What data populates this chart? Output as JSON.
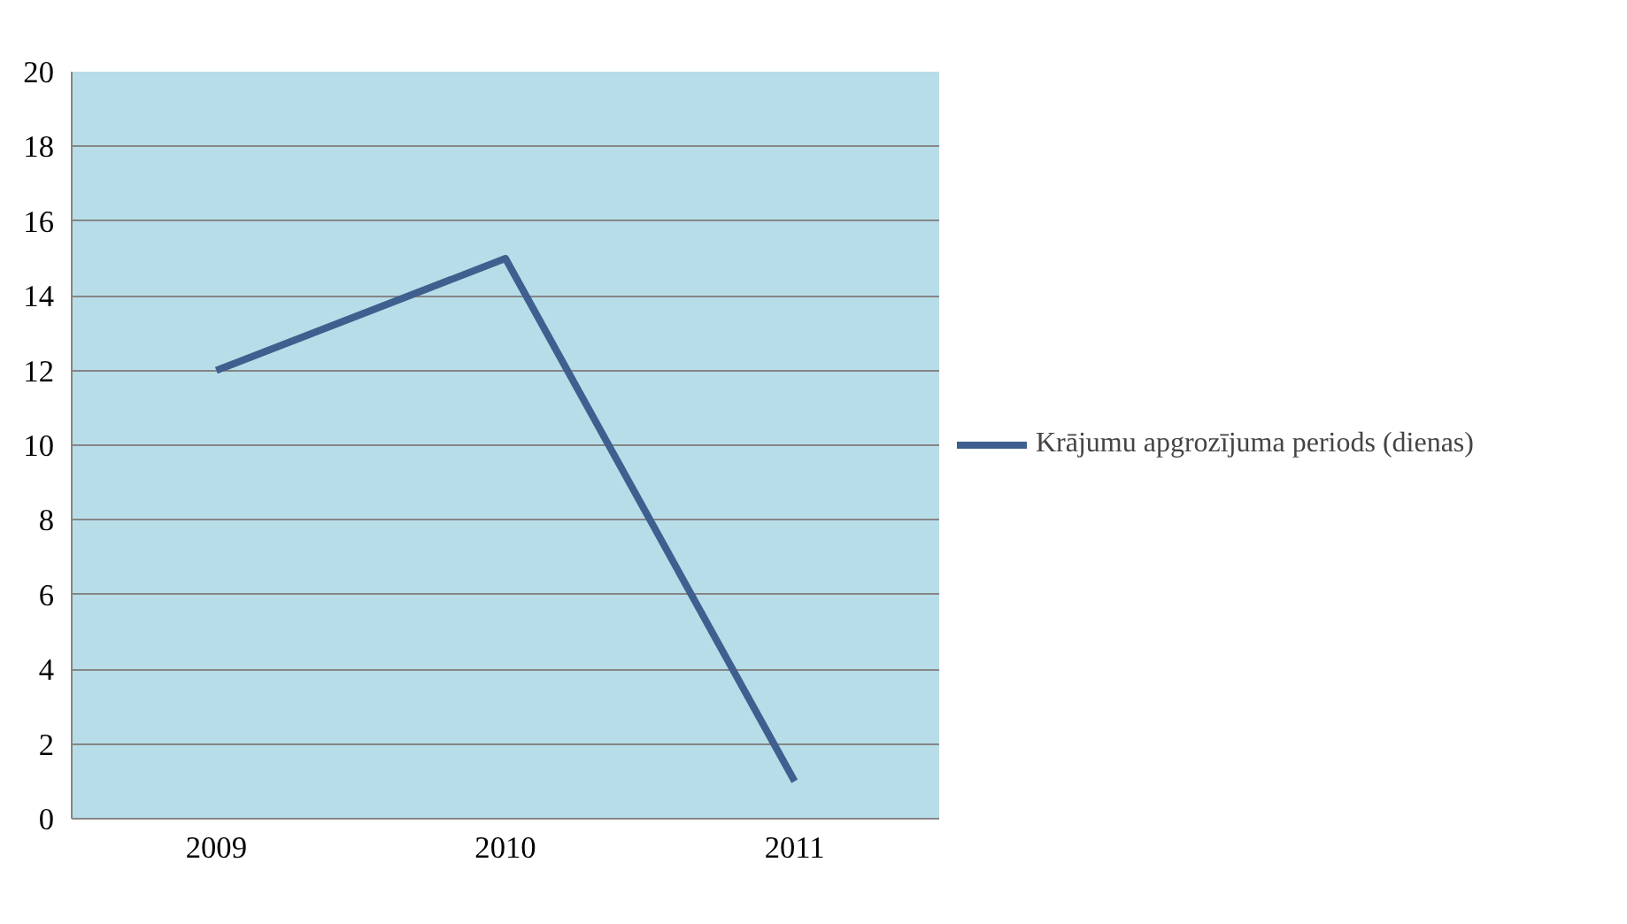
{
  "chart_data": {
    "type": "line",
    "categories": [
      "2009",
      "2010",
      "2011"
    ],
    "series": [
      {
        "name": "Krājumu apgrozījuma periods (dienas)",
        "color": "#3f5f8f",
        "values": [
          12,
          15,
          1
        ]
      }
    ],
    "ylim": [
      0,
      20
    ],
    "yticks": [
      0,
      2,
      4,
      6,
      8,
      10,
      12,
      14,
      16,
      18,
      20
    ],
    "grid": "y",
    "legend": "right",
    "marker": "none",
    "line_style": "solid"
  }
}
